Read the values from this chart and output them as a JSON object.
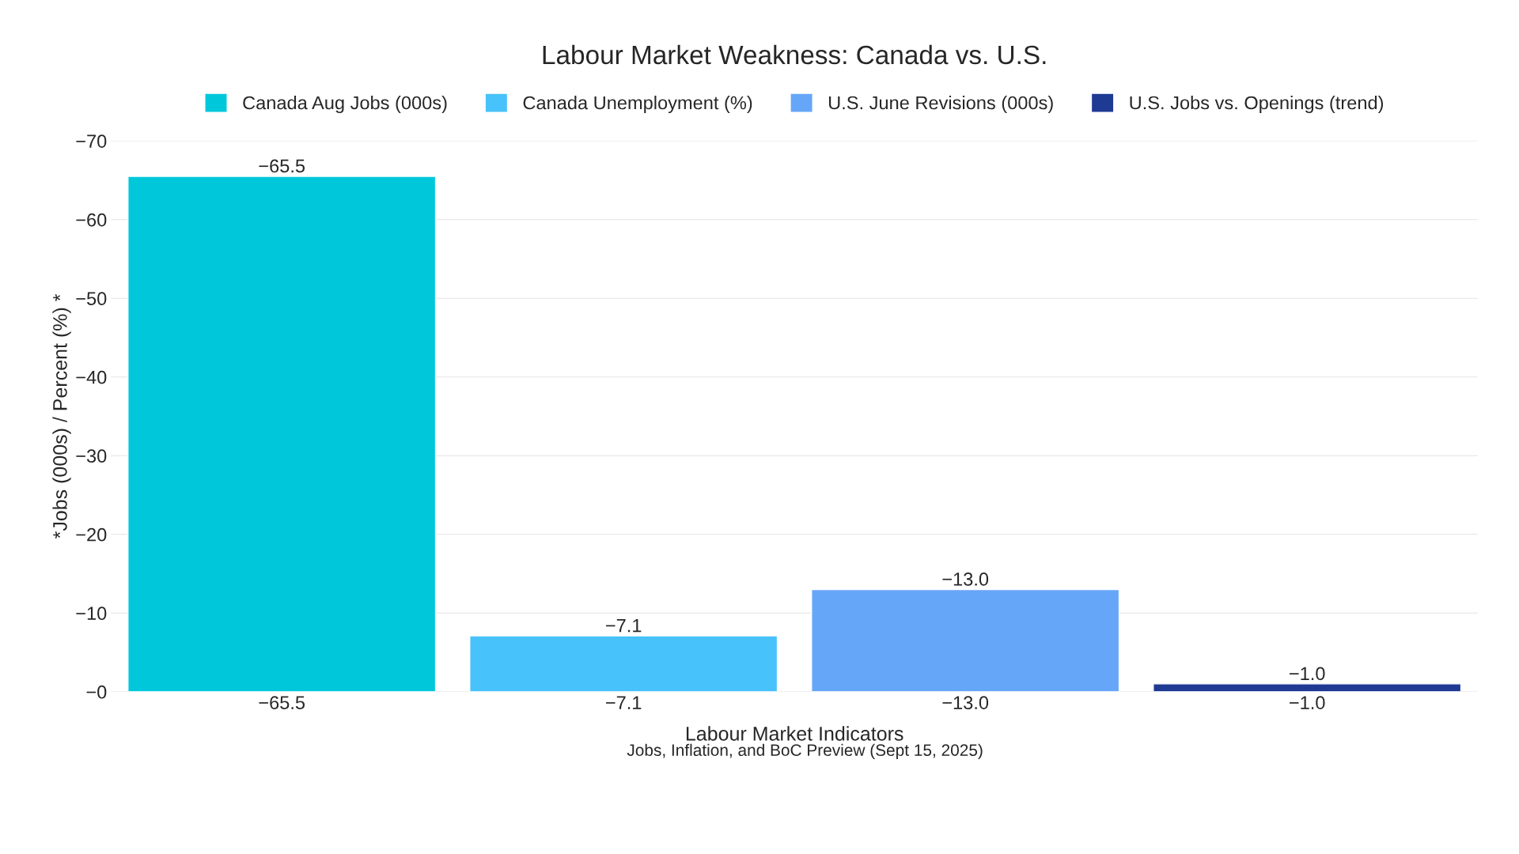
{
  "chart_data": {
    "type": "bar",
    "title": "Labour Market Weakness: Canada vs. U.S.",
    "xlabel": "Labour Market Indicators",
    "ylabel": "*Jobs (000s) / Percent (%) *",
    "categories": [
      "−65.5",
      "−7.1",
      "−13.0",
      "−1.0"
    ],
    "series": [
      {
        "name": "Canada Aug Jobs (000s)",
        "color": "#00c8da",
        "values": [
          -65.5,
          null,
          null,
          null
        ],
        "value_labels": [
          "−65.5",
          null,
          null,
          null
        ]
      },
      {
        "name": "Canada Unemployment (%)",
        "color": "#48c2fa",
        "values": [
          null,
          -7.1,
          null,
          null
        ],
        "value_labels": [
          null,
          "−7.1",
          null,
          null
        ]
      },
      {
        "name": "U.S. June Revisions (000s)",
        "color": "#66a6f8",
        "values": [
          null,
          null,
          -13.0,
          null
        ],
        "value_labels": [
          null,
          null,
          "−13.0",
          null
        ]
      },
      {
        "name": "U.S. Jobs vs. Openings (trend)",
        "color": "#1f3a93",
        "values": [
          null,
          null,
          null,
          -1.0
        ],
        "value_labels": [
          null,
          null,
          null,
          "−1.0"
        ]
      }
    ],
    "ylim": [
      0,
      -70
    ],
    "yticks": [
      {
        "value": 0,
        "label": "−0"
      },
      {
        "value": -10,
        "label": "−10"
      },
      {
        "value": -20,
        "label": "−20"
      },
      {
        "value": -30,
        "label": "−30"
      },
      {
        "value": -40,
        "label": "−40"
      },
      {
        "value": -50,
        "label": "−50"
      },
      {
        "value": -60,
        "label": "−60"
      },
      {
        "value": -70,
        "label": "−70"
      }
    ],
    "grid": "y",
    "legend": "top",
    "annotations": [
      "Jobs, Inflation, and BoC Preview (Sept 15, 2025)"
    ]
  }
}
